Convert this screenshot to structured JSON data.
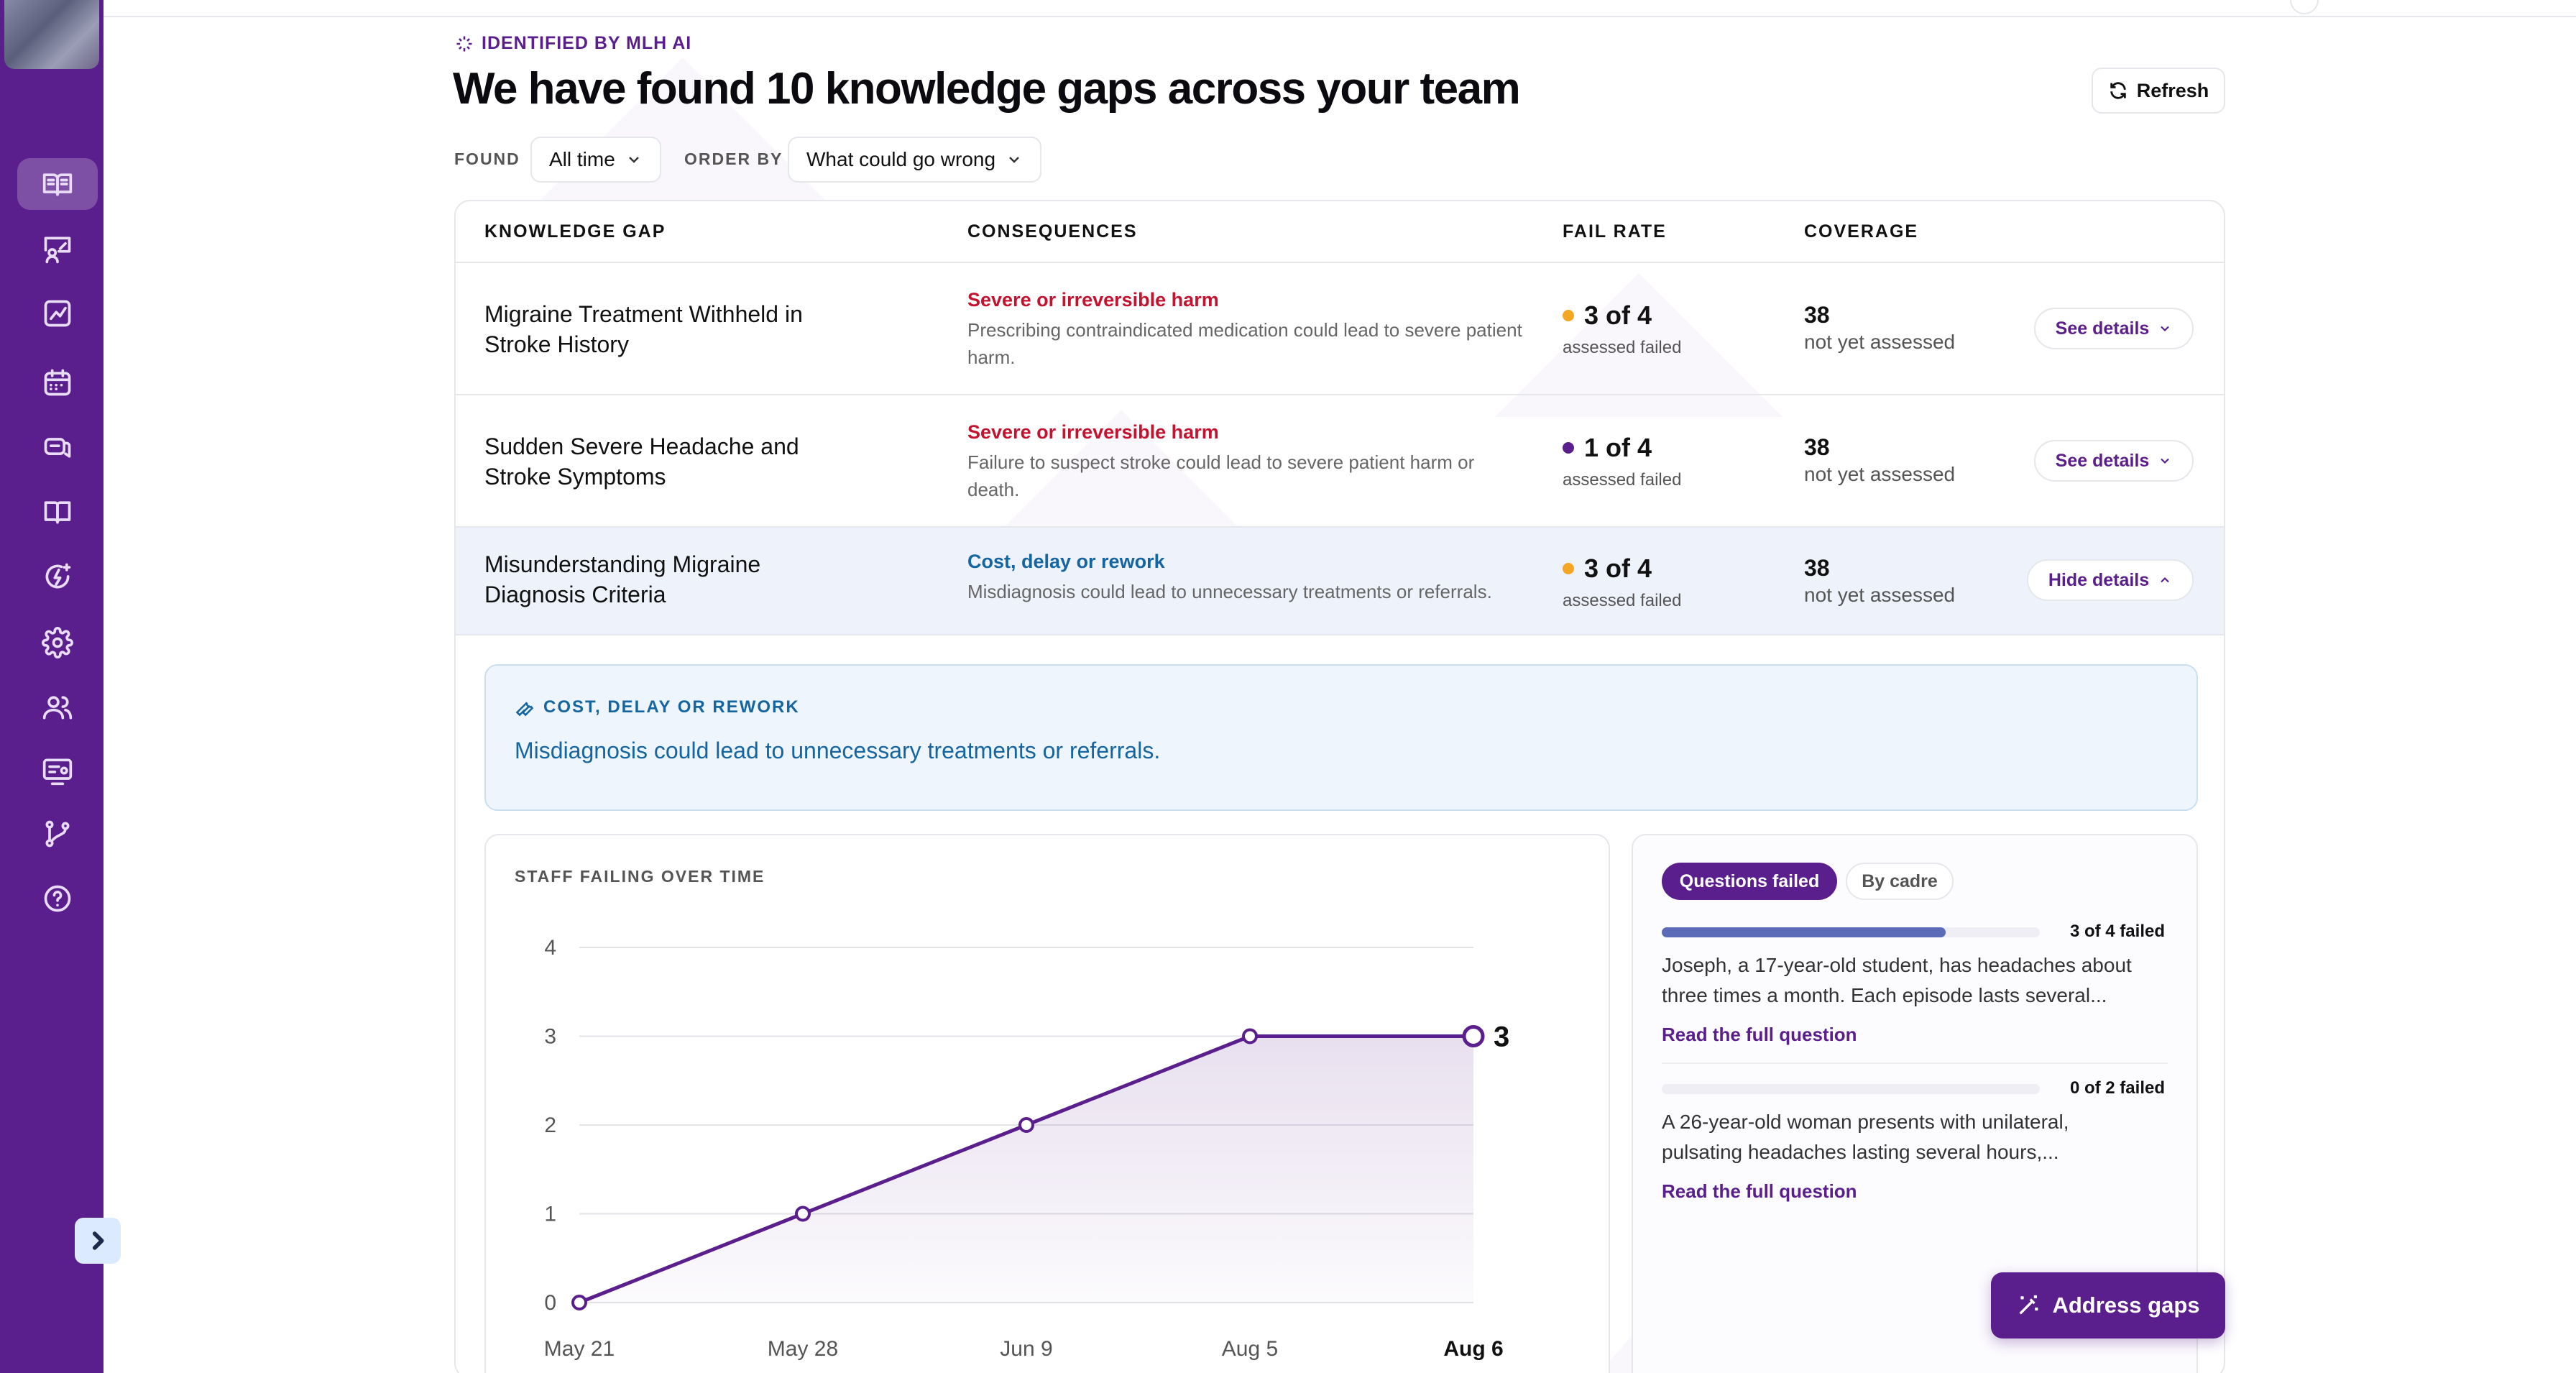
{
  "header": {
    "eyebrow": "IDENTIFIED BY MLH AI",
    "title": "We have found 10 knowledge gaps across your team",
    "refresh_label": "Refresh"
  },
  "filters": {
    "found_label": "FOUND",
    "found_value": "All time",
    "order_label": "ORDER BY",
    "order_value": "What could go wrong"
  },
  "table": {
    "columns": [
      "KNOWLEDGE GAP",
      "CONSEQUENCES",
      "FAIL RATE",
      "COVERAGE"
    ],
    "rows": [
      {
        "gap_line1": "Migraine Treatment Withheld in",
        "gap_line2": "Stroke History",
        "consequence": "Severe or irreversible harm",
        "consequence_desc": "Prescribing contraindicated medication could lead to severe patient harm.",
        "fail_rate": "3 of 4",
        "fail_sub": "assessed failed",
        "fail_color": "#f5a623",
        "coverage": "38",
        "coverage_sub": "not yet assessed",
        "action": "See details"
      },
      {
        "gap_line1": "Sudden Severe Headache and",
        "gap_line2": "Stroke Symptoms",
        "consequence": "Severe or irreversible harm",
        "consequence_desc": "Failure to suspect stroke could lead to severe patient harm or death.",
        "fail_rate": "1 of 4",
        "fail_sub": "assessed failed",
        "fail_color": "#5a1f8c",
        "coverage": "38",
        "coverage_sub": "not yet assessed",
        "action": "See details"
      },
      {
        "gap_line1": "Misunderstanding Migraine",
        "gap_line2": "Diagnosis Criteria",
        "consequence": "Cost, delay or rework",
        "consequence_desc": "Misdiagnosis could lead to unnecessary treatments or referrals.",
        "fail_rate": "3 of 4",
        "fail_sub": "assessed failed",
        "fail_color": "#f5a623",
        "coverage": "38",
        "coverage_sub": "not yet assessed",
        "action": "Hide details"
      }
    ]
  },
  "expanded": {
    "label": "COST, DELAY OR REWORK",
    "text": "Misdiagnosis could lead to unnecessary treatments or referrals.",
    "chart_title": "STAFF FAILING OVER TIME",
    "tabs": [
      "Questions failed",
      "By cadre"
    ],
    "questions": [
      {
        "progress": 0.75,
        "status": "3 of 4 failed",
        "text_line1": "Joseph, a 17-year-old student, has headaches about",
        "text_line2": "three times a month. Each episode lasts several...",
        "link": "Read the full question"
      },
      {
        "progress": 0,
        "status": "0 of 2 failed",
        "text_line1": "A 26-year-old woman presents with unilateral,",
        "text_line2": "pulsating headaches lasting several hours,...",
        "link": "Read the full question"
      }
    ]
  },
  "chart_data": {
    "type": "line",
    "categories": [
      "May 21",
      "May 28",
      "Jun 9",
      "Aug 5",
      "Aug 6"
    ],
    "values": [
      0,
      1,
      2,
      3,
      3
    ],
    "title": "STAFF FAILING OVER TIME",
    "ylim": [
      0,
      4
    ],
    "yticks": [
      0,
      1,
      2,
      3,
      4
    ],
    "end_label": "3",
    "color": "#5a1f8c"
  },
  "actions": {
    "address_label": "Address gaps"
  },
  "colors": {
    "brand": "#5a1f8c",
    "severe": "#c4122f",
    "cost": "#1565a0"
  }
}
